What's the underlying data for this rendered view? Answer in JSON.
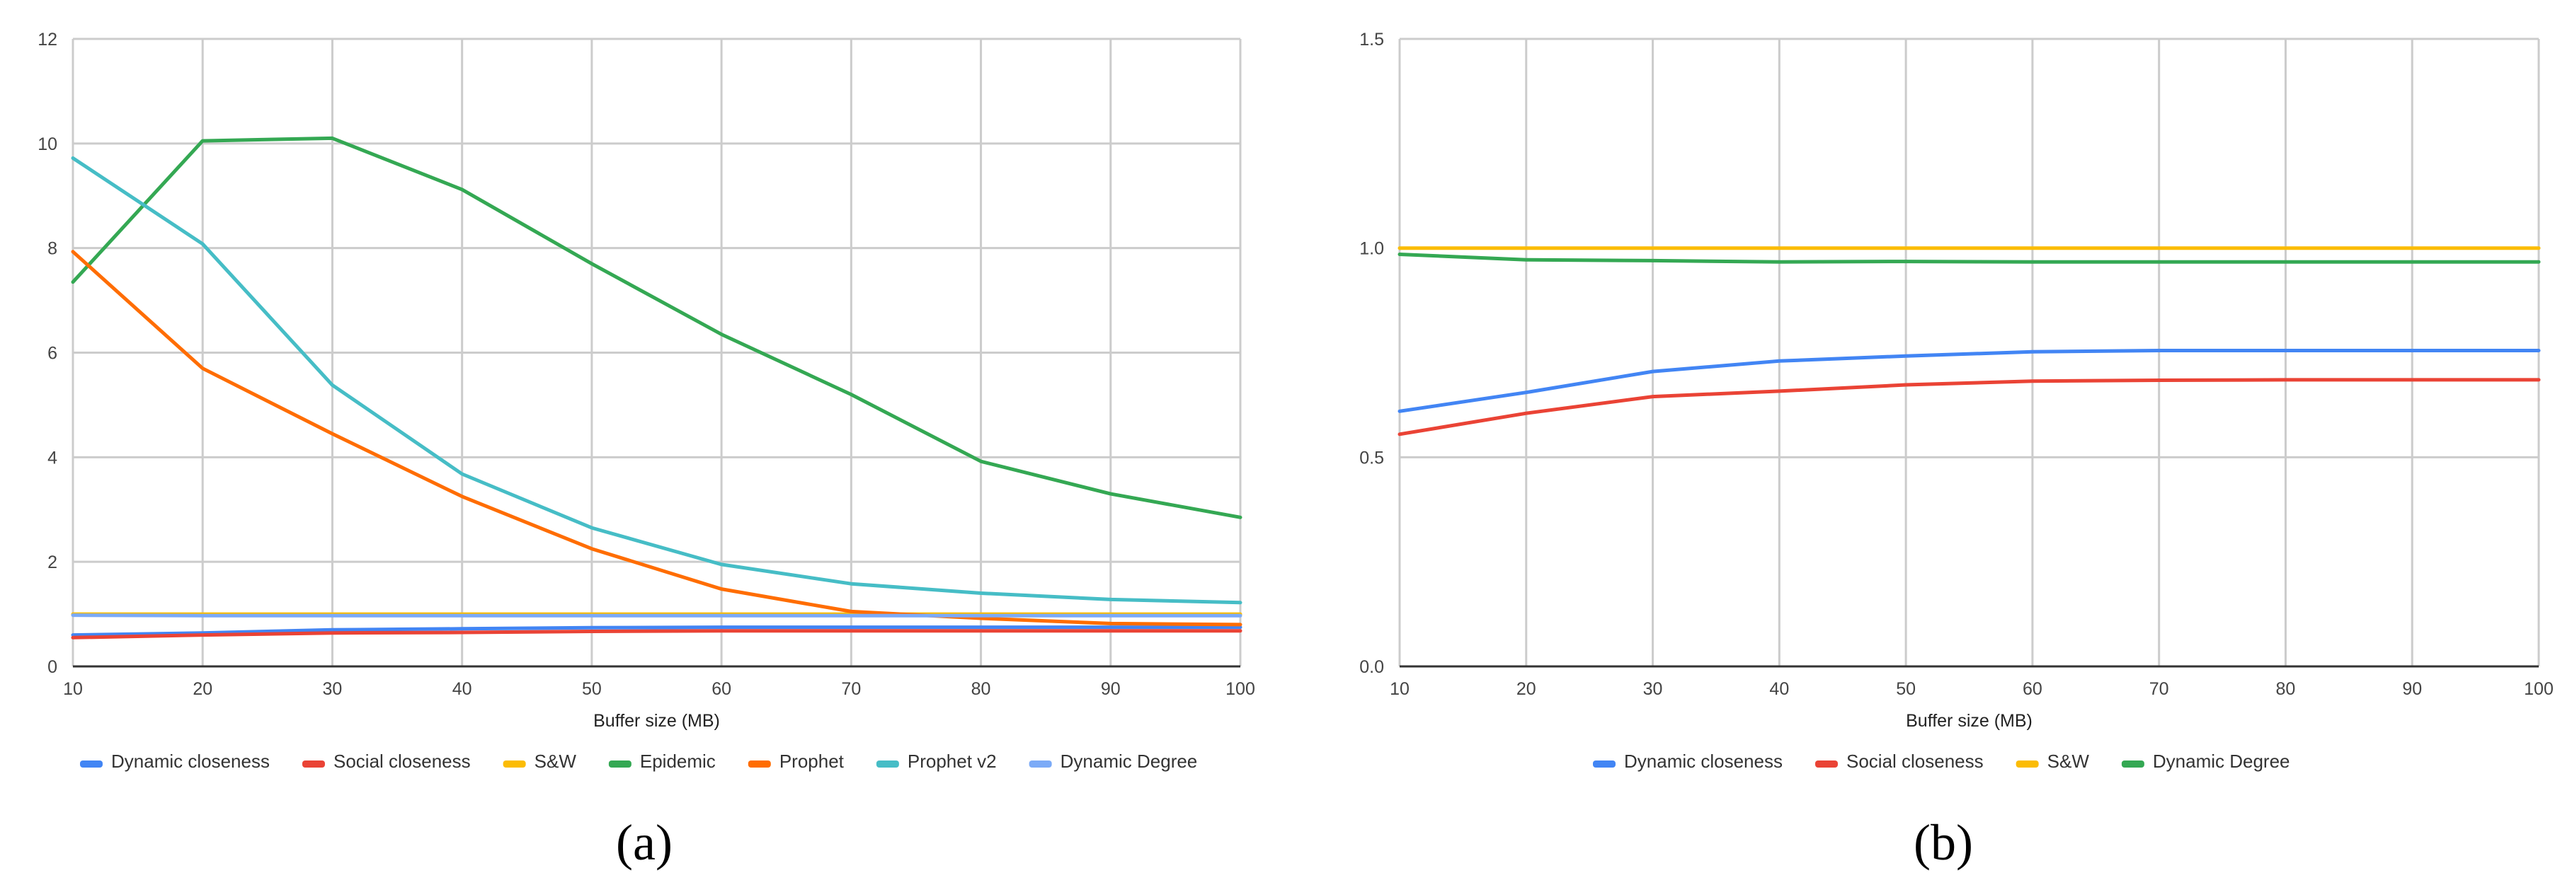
{
  "chart_data": [
    {
      "type": "line",
      "panel": "(a)",
      "title": "",
      "xlabel": "Buffer size (MB)",
      "ylabel": "",
      "x": [
        10,
        20,
        30,
        40,
        50,
        60,
        70,
        80,
        90,
        100
      ],
      "xlim": [
        10,
        100
      ],
      "ylim": [
        0,
        12
      ],
      "yticks": [
        0,
        2,
        4,
        6,
        8,
        10,
        12
      ],
      "grid": true,
      "legend_position": "bottom",
      "series": [
        {
          "name": "Dynamic closeness",
          "color": "#4285f4",
          "values": [
            0.6,
            0.64,
            0.7,
            0.72,
            0.74,
            0.75,
            0.75,
            0.75,
            0.75,
            0.75
          ]
        },
        {
          "name": "Social closeness",
          "color": "#ea4335",
          "values": [
            0.55,
            0.6,
            0.64,
            0.65,
            0.67,
            0.68,
            0.68,
            0.68,
            0.68,
            0.68
          ]
        },
        {
          "name": "S&W",
          "color": "#fbbc04",
          "values": [
            1.0,
            1.0,
            1.0,
            1.0,
            1.0,
            1.0,
            1.0,
            1.0,
            1.0,
            1.0
          ]
        },
        {
          "name": "Epidemic",
          "color": "#34a853",
          "values": [
            7.35,
            10.05,
            10.1,
            9.12,
            7.7,
            6.35,
            5.2,
            3.92,
            3.3,
            2.85
          ]
        },
        {
          "name": "Prophet",
          "color": "#ff6d01",
          "values": [
            7.93,
            5.7,
            4.45,
            3.25,
            2.25,
            1.48,
            1.05,
            0.92,
            0.82,
            0.8
          ]
        },
        {
          "name": "Prophet v2",
          "color": "#46bdc6",
          "values": [
            9.72,
            8.08,
            5.38,
            3.68,
            2.65,
            1.95,
            1.58,
            1.4,
            1.28,
            1.22
          ]
        },
        {
          "name": "Dynamic Degree",
          "color": "#7baaf7",
          "values": [
            0.98,
            0.97,
            0.97,
            0.97,
            0.97,
            0.97,
            0.97,
            0.97,
            0.97,
            0.97
          ]
        }
      ]
    },
    {
      "type": "line",
      "panel": "(b)",
      "title": "",
      "xlabel": "Buffer size (MB)",
      "ylabel": "",
      "x": [
        10,
        20,
        30,
        40,
        50,
        60,
        70,
        80,
        90,
        100
      ],
      "xlim": [
        10,
        100
      ],
      "ylim": [
        0,
        1.5
      ],
      "yticks": [
        0.0,
        0.5,
        1.0,
        1.5
      ],
      "ytick_labels": [
        "0.0",
        "0.5",
        "1.0",
        "1.5"
      ],
      "grid": true,
      "legend_position": "bottom",
      "series": [
        {
          "name": "Dynamic closeness",
          "color": "#4285f4",
          "values": [
            0.61,
            0.655,
            0.705,
            0.73,
            0.742,
            0.752,
            0.755,
            0.755,
            0.755,
            0.755
          ]
        },
        {
          "name": "Social closeness",
          "color": "#ea4335",
          "values": [
            0.555,
            0.605,
            0.645,
            0.658,
            0.673,
            0.682,
            0.684,
            0.685,
            0.685,
            0.685
          ]
        },
        {
          "name": "S&W",
          "color": "#fbbc04",
          "values": [
            1.0,
            1.0,
            1.0,
            1.0,
            1.0,
            1.0,
            1.0,
            1.0,
            1.0,
            1.0
          ]
        },
        {
          "name": "Dynamic Degree",
          "color": "#34a853",
          "values": [
            0.985,
            0.972,
            0.97,
            0.967,
            0.968,
            0.967,
            0.967,
            0.967,
            0.967,
            0.967
          ]
        }
      ]
    }
  ]
}
